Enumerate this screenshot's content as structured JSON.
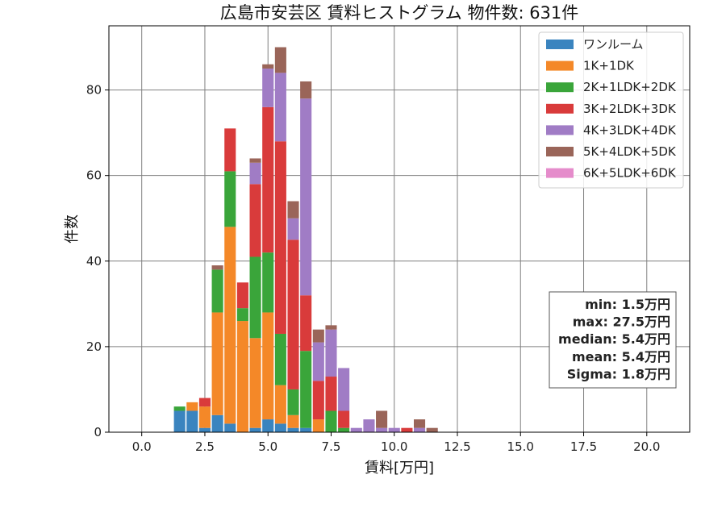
{
  "chart_data": {
    "type": "bar",
    "title": "広島市安芸区 賃料ヒストグラム  物件数: 631件",
    "xlabel": "賃料[万円]",
    "ylabel": "件数",
    "xlim": [
      -1.3,
      21.7
    ],
    "ylim": [
      0,
      95
    ],
    "xticks": [
      "0.0",
      "2.5",
      "5.0",
      "7.5",
      "10.0",
      "12.5",
      "15.0",
      "17.5",
      "20.0"
    ],
    "yticks": [
      "0",
      "20",
      "40",
      "60",
      "80"
    ],
    "grid": true,
    "stacked": true,
    "bin_width": 0.5,
    "bin_starts": [
      1.25,
      1.75,
      2.25,
      2.75,
      3.25,
      3.75,
      4.25,
      4.75,
      5.25,
      5.75,
      6.25,
      6.75,
      7.25,
      7.75,
      8.25,
      8.75,
      9.25,
      9.75,
      10.25,
      10.75,
      11.25
    ],
    "series": [
      {
        "name": "ワンルーム",
        "color": "#3a84bf",
        "values": [
          5,
          5,
          1,
          4,
          2,
          0,
          1,
          3,
          2,
          1,
          1,
          0,
          0,
          0,
          0,
          0,
          0,
          0,
          0,
          0,
          0
        ]
      },
      {
        "name": "1K+1DK",
        "color": "#f48828",
        "values": [
          0,
          2,
          5,
          24,
          46,
          26,
          21,
          25,
          9,
          3,
          0,
          3,
          0,
          0,
          0,
          0,
          0,
          0,
          0,
          0,
          0
        ]
      },
      {
        "name": "2K+1LDK+2DK",
        "color": "#3aa53a",
        "values": [
          1,
          0,
          0,
          10,
          13,
          3,
          19,
          14,
          12,
          6,
          18,
          0,
          5,
          1,
          0,
          0,
          0,
          0,
          0,
          0,
          0
        ]
      },
      {
        "name": "3K+2LDK+3DK",
        "color": "#d93b3b",
        "values": [
          0,
          0,
          2,
          0,
          10,
          6,
          17,
          34,
          45,
          35,
          13,
          9,
          8,
          4,
          0,
          0,
          0,
          0,
          1,
          0,
          0
        ]
      },
      {
        "name": "4K+3LDK+4DK",
        "color": "#a07cc5",
        "values": [
          0,
          0,
          0,
          0,
          0,
          0,
          5,
          9,
          16,
          5,
          46,
          9,
          11,
          10,
          1,
          3,
          1,
          1,
          0,
          1,
          0
        ]
      },
      {
        "name": "5K+4LDK+5DK",
        "color": "#9a6559",
        "values": [
          0,
          0,
          0,
          1,
          0,
          0,
          1,
          1,
          6,
          4,
          4,
          3,
          1,
          0,
          0,
          0,
          4,
          0,
          0,
          2,
          1
        ]
      },
      {
        "name": "6K+5LDK+6DK",
        "color": "#e58ccb",
        "values": [
          0,
          0,
          0,
          0,
          0,
          0,
          0,
          0,
          0,
          0,
          0,
          0,
          0,
          0,
          0,
          0,
          0,
          0,
          0,
          0,
          0
        ]
      }
    ],
    "legend_position": "top-right",
    "stats_box": {
      "position": "right",
      "lines": [
        "min: 1.5万円",
        "max: 27.5万円",
        "median: 5.4万円",
        "mean: 5.4万円",
        "Sigma: 1.8万円"
      ]
    }
  }
}
